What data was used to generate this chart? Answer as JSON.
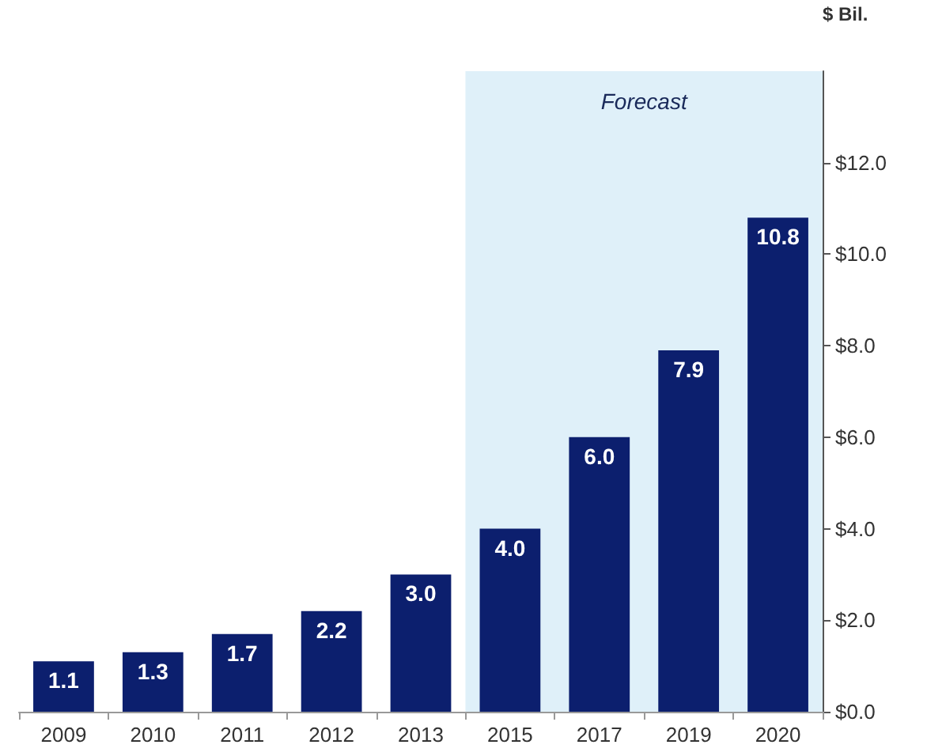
{
  "chart_data": {
    "type": "bar",
    "ylabel": "$ Bil.",
    "categories": [
      "2009",
      "2010",
      "2011",
      "2012",
      "2013",
      "2015",
      "2017",
      "2019",
      "2020"
    ],
    "values": [
      1.1,
      1.3,
      1.7,
      2.2,
      3.0,
      4.0,
      6.0,
      7.9,
      10.8
    ],
    "value_labels": [
      "1.1",
      "1.3",
      "1.7",
      "2.2",
      "3.0",
      "4.0",
      "6.0",
      "7.9",
      "10.8"
    ],
    "color": "#0c1f6e",
    "ylim": [
      0,
      14
    ],
    "yticks": [
      {
        "value": 0,
        "label": "$0.0"
      },
      {
        "value": 2,
        "label": "$2.0"
      },
      {
        "value": 4,
        "label": "$4.0"
      },
      {
        "value": 6,
        "label": "$6.0"
      },
      {
        "value": 8,
        "label": "$8.0"
      },
      {
        "value": 10,
        "label": "$10.0"
      },
      {
        "value": 12,
        "label": "$12.0"
      }
    ],
    "bands": [
      {
        "axis": "x",
        "from": "2015",
        "to": "2020",
        "label": "Forecast",
        "color": "#dff0f9"
      }
    ],
    "grid": false
  }
}
